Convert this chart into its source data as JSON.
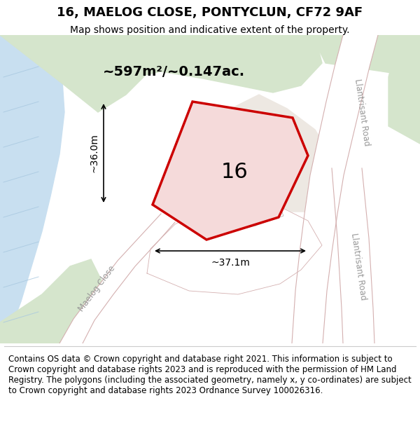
{
  "title": "16, MAELOG CLOSE, PONTYCLUN, CF72 9AF",
  "subtitle": "Map shows position and indicative extent of the property.",
  "footer": "Contains OS data © Crown copyright and database right 2021. This information is subject to Crown copyright and database rights 2023 and is reproduced with the permission of HM Land Registry. The polygons (including the associated geometry, namely x, y co-ordinates) are subject to Crown copyright and database rights 2023 Ordnance Survey 100026316.",
  "area_label": "~597m²/~0.147ac.",
  "plot_number": "16",
  "width_label": "~37.1m",
  "height_label": "~36.0m",
  "map_bg": "#e8ede5",
  "water_color": "#c8dff0",
  "plot_fill": "#f5dada",
  "plot_outline": "#cc0000",
  "green_area": "#d5e5cc",
  "white_road": "#ffffff",
  "road_edge": "#d4b0b0",
  "title_fontsize": 13,
  "subtitle_fontsize": 10,
  "footer_fontsize": 8.5
}
